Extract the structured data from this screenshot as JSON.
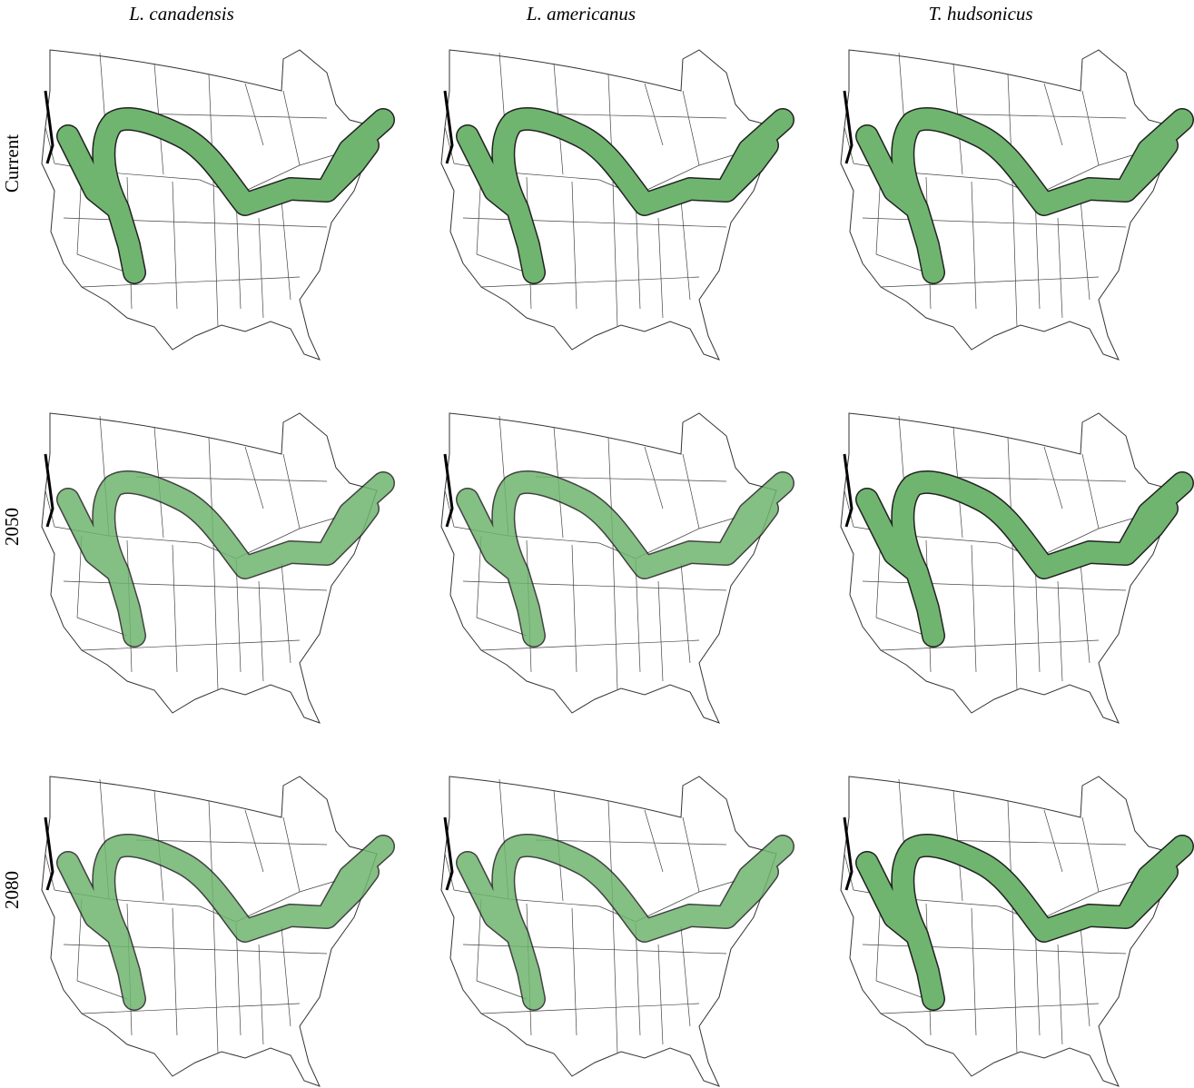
{
  "columns": [
    "L. canadensis",
    "L. americanus",
    "T. hudsonicus"
  ],
  "rows": [
    "Current",
    "2050",
    "2080"
  ]
}
